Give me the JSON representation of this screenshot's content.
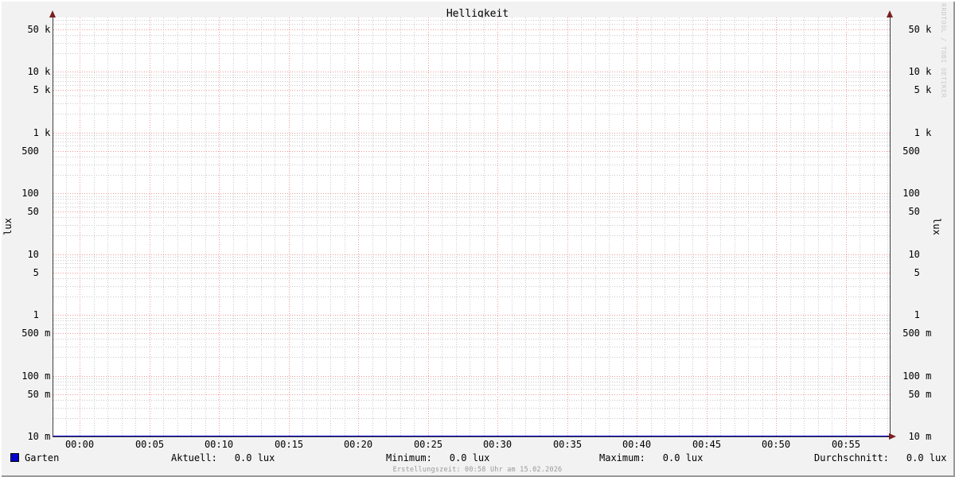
{
  "watermark": "RRDTOOL / TOBI OETIKER",
  "footer": "Erstellungszeit: 00:58 Uhr am 15.02.2026",
  "colors": {
    "frame_bg": "#f2f2f2",
    "plot_bg": "#ffffff",
    "border_light": "#ffffff",
    "border_dark": "#999999",
    "grid_major": "#f09999",
    "grid_minor": "#c9c9c9",
    "axis": "#404040",
    "arrow": "#7a1f1f",
    "series_line": "#0000cc",
    "text": "#000000",
    "footer_text": "#999999",
    "watermark_text": "#c9c9c9"
  },
  "chart_data": {
    "type": "line",
    "title": "Helligkeit",
    "xlabel": "",
    "ylabel": "lux",
    "ylabel_right": "lux",
    "y_scale": "log",
    "ylim": [
      0.01,
      80000
    ],
    "grid": "on",
    "legend_position": "bottom-left",
    "x_major_step_minutes": 5,
    "x_minor_step_minutes": 1,
    "x_ticks": [
      {
        "minute": 0,
        "label": "00:00"
      },
      {
        "minute": 5,
        "label": "00:05"
      },
      {
        "minute": 10,
        "label": "00:10"
      },
      {
        "minute": 15,
        "label": "00:15"
      },
      {
        "minute": 20,
        "label": "00:20"
      },
      {
        "minute": 25,
        "label": "00:25"
      },
      {
        "minute": 30,
        "label": "00:30"
      },
      {
        "minute": 35,
        "label": "00:35"
      },
      {
        "minute": 40,
        "label": "00:40"
      },
      {
        "minute": 45,
        "label": "00:45"
      },
      {
        "minute": 50,
        "label": "00:50"
      },
      {
        "minute": 55,
        "label": "00:55"
      }
    ],
    "y_ticks": [
      {
        "value": 50000,
        "label": "50 k"
      },
      {
        "value": 10000,
        "label": "10 k"
      },
      {
        "value": 5000,
        "label": "5 k"
      },
      {
        "value": 1000,
        "label": "1 k"
      },
      {
        "value": 500,
        "label": "500"
      },
      {
        "value": 100,
        "label": "100"
      },
      {
        "value": 50,
        "label": "50"
      },
      {
        "value": 10,
        "label": "10"
      },
      {
        "value": 5,
        "label": "5"
      },
      {
        "value": 1,
        "label": "1"
      },
      {
        "value": 0.5,
        "label": "500 m"
      },
      {
        "value": 0.1,
        "label": "100 m"
      },
      {
        "value": 0.05,
        "label": "50 m"
      },
      {
        "value": 0.01,
        "label": "10 m"
      }
    ],
    "series": [
      {
        "name": "Garten",
        "color": "#0000cc",
        "constant_value_lux": 0.0
      }
    ],
    "legend": [
      {
        "name": "Garten",
        "color": "#0000cc"
      }
    ],
    "stats": [
      {
        "label": "Aktuell:",
        "value": "0.0 lux"
      },
      {
        "label": "Minimum:",
        "value": "0.0 lux"
      },
      {
        "label": "Maximum:",
        "value": "0.0 lux"
      },
      {
        "label": "Durchschnitt:",
        "value": "0.0 lux"
      }
    ]
  }
}
